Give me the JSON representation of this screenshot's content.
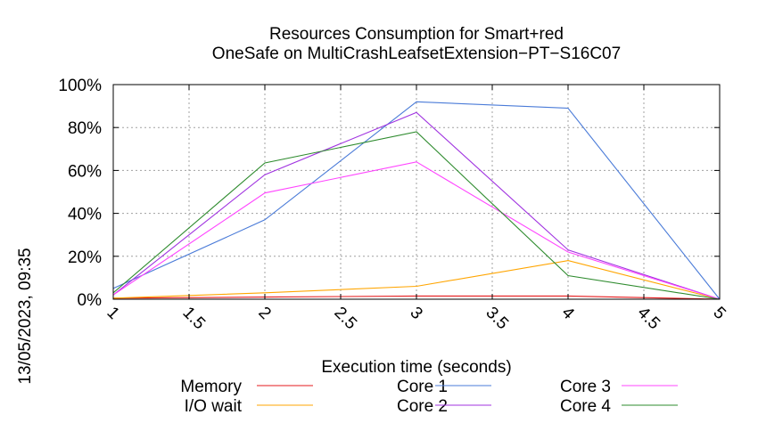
{
  "chart_data": {
    "type": "line",
    "title_line1": "Resources Consumption for Smart+red",
    "title_line2": "OneSafe on MultiCrashLeafsetExtension−PT−S16C07",
    "xlabel": "Execution time (seconds)",
    "ylabel": "",
    "side_label": "13/05/2023, 09:35",
    "xlim": [
      1,
      5
    ],
    "ylim": [
      0,
      100
    ],
    "x_ticks": [
      "1",
      "1.5",
      "2",
      "2.5",
      "3",
      "3.5",
      "4",
      "4.5",
      "5"
    ],
    "y_ticks": [
      "0%",
      "20%",
      "40%",
      "60%",
      "80%",
      "100%"
    ],
    "grid": true,
    "legend_placement": "bottom",
    "x": [
      1,
      2,
      3,
      4,
      5
    ],
    "series": [
      {
        "name": "Memory",
        "color": "#e41a1c",
        "values": [
          0.5,
          1,
          1.5,
          1.5,
          0
        ]
      },
      {
        "name": "I/O wait",
        "color": "#ffa500",
        "values": [
          0.5,
          3,
          6,
          18,
          0
        ]
      },
      {
        "name": "Core 1",
        "color": "#4a7bd8",
        "values": [
          5,
          37,
          92,
          89,
          0
        ]
      },
      {
        "name": "Core 2",
        "color": "#a033e0",
        "values": [
          2,
          58,
          87,
          23,
          0
        ]
      },
      {
        "name": "Core 3",
        "color": "#ff44ff",
        "values": [
          2,
          49.5,
          64,
          22,
          0
        ]
      },
      {
        "name": "Core 4",
        "color": "#2e8b2e",
        "values": [
          3,
          63.5,
          78,
          11,
          0
        ]
      }
    ]
  }
}
